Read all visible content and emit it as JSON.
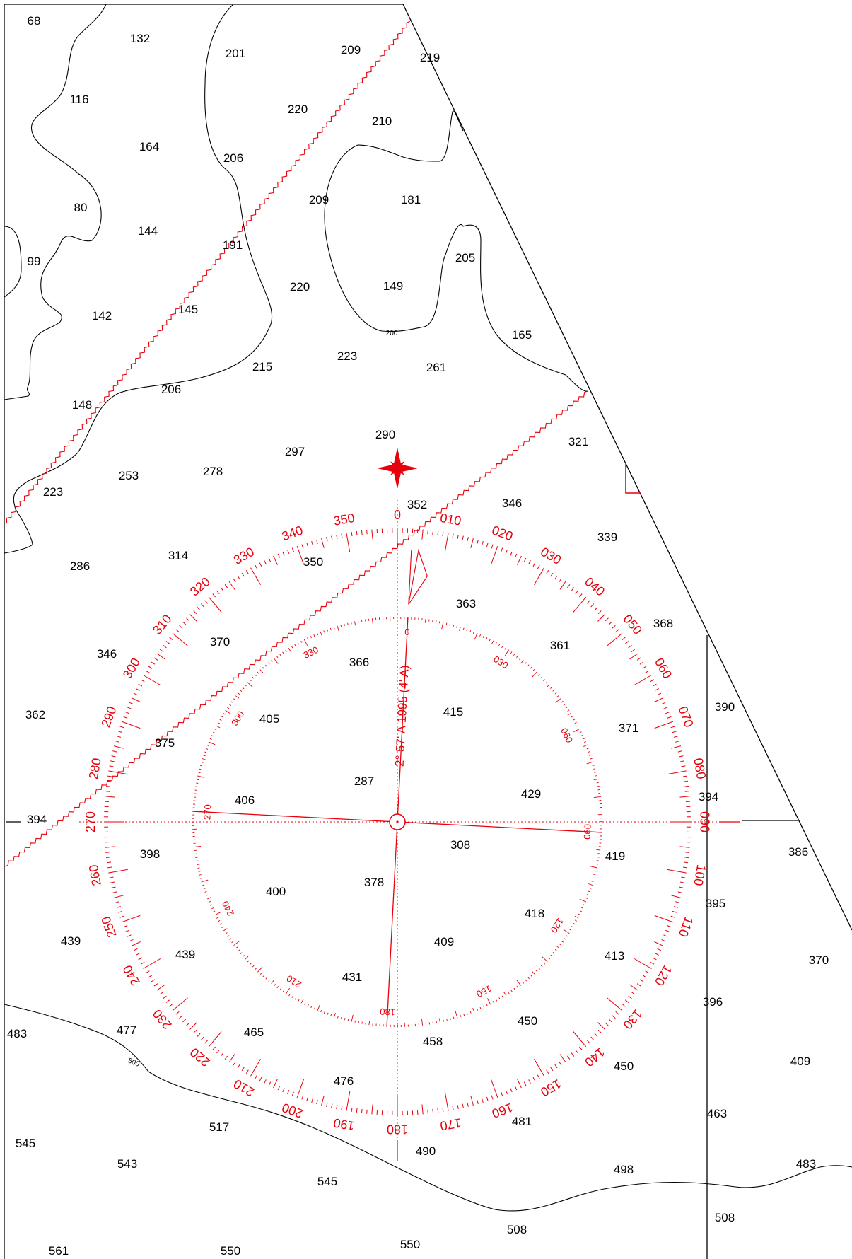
{
  "colors": {
    "ink": "#000000",
    "compass": "#e8000b",
    "background": "#ffffff"
  },
  "soundings": [
    "68",
    "132",
    "201",
    "209",
    "219",
    "116",
    "220",
    "210",
    "164",
    "206",
    "181",
    "209",
    "80",
    "144",
    "191",
    "205",
    "99",
    "149",
    "220",
    "142",
    "145",
    "165",
    "215",
    "223",
    "261",
    "148",
    "206",
    "290",
    "321",
    "297",
    "278",
    "253",
    "223",
    "352",
    "346",
    "339",
    "286",
    "314",
    "350",
    "363",
    "368",
    "361",
    "370",
    "346",
    "366",
    "415",
    "390",
    "362",
    "405",
    "371",
    "375",
    "287",
    "429",
    "394",
    "406",
    "394",
    "308",
    "386",
    "419",
    "398",
    "378",
    "400",
    "418",
    "395",
    "439",
    "409",
    "439",
    "413",
    "370",
    "431",
    "396",
    "450",
    "483",
    "477",
    "465",
    "458",
    "450",
    "409",
    "476",
    "463",
    "481",
    "545",
    "517",
    "490",
    "483",
    "543",
    "498",
    "545",
    "508",
    "508",
    "550",
    "550",
    "561"
  ],
  "contour_labels": [
    "200",
    "500"
  ],
  "compass_rose": {
    "outer_ring_labels": [
      "0",
      "010",
      "020",
      "030",
      "040",
      "050",
      "060",
      "070",
      "080",
      "090",
      "100",
      "110",
      "120",
      "130",
      "140",
      "150",
      "160",
      "170",
      "180",
      "190",
      "200",
      "210",
      "220",
      "230",
      "240",
      "250",
      "260",
      "270",
      "280",
      "290",
      "300",
      "310",
      "320",
      "330",
      "340",
      "350"
    ],
    "inner_ring_labels": [
      "0",
      "030",
      "060",
      "090",
      "120",
      "150",
      "180",
      "210",
      "240",
      "270",
      "300",
      "330"
    ],
    "variation_text": "2° 57' A 1995 (4' A)",
    "variation_degrees": 2.95
  }
}
